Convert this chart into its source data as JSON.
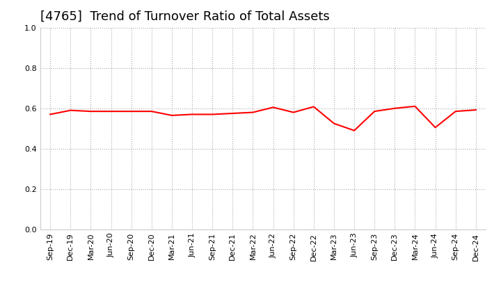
{
  "title": "[4765]  Trend of Turnover Ratio of Total Assets",
  "x_labels": [
    "Sep-19",
    "Dec-19",
    "Mar-20",
    "Jun-20",
    "Sep-20",
    "Dec-20",
    "Mar-21",
    "Jun-21",
    "Sep-21",
    "Dec-21",
    "Mar-22",
    "Jun-22",
    "Sep-22",
    "Dec-22",
    "Mar-23",
    "Jun-23",
    "Sep-23",
    "Dec-23",
    "Mar-24",
    "Jun-24",
    "Sep-24",
    "Dec-24"
  ],
  "values": [
    0.57,
    0.59,
    0.585,
    0.585,
    0.585,
    0.585,
    0.565,
    0.57,
    0.57,
    0.575,
    0.58,
    0.605,
    0.58,
    0.608,
    0.525,
    0.49,
    0.585,
    0.6,
    0.61,
    0.505,
    0.585,
    0.592
  ],
  "line_color": "#FF0000",
  "line_width": 1.5,
  "ylim": [
    0.0,
    1.0
  ],
  "yticks": [
    0.0,
    0.2,
    0.4,
    0.6,
    0.8,
    1.0
  ],
  "grid_color": "#AAAAAA",
  "grid_linestyle": "dotted",
  "title_fontsize": 13,
  "tick_fontsize": 8,
  "background_color": "#FFFFFF",
  "plot_area_color": "#FFFFFF"
}
